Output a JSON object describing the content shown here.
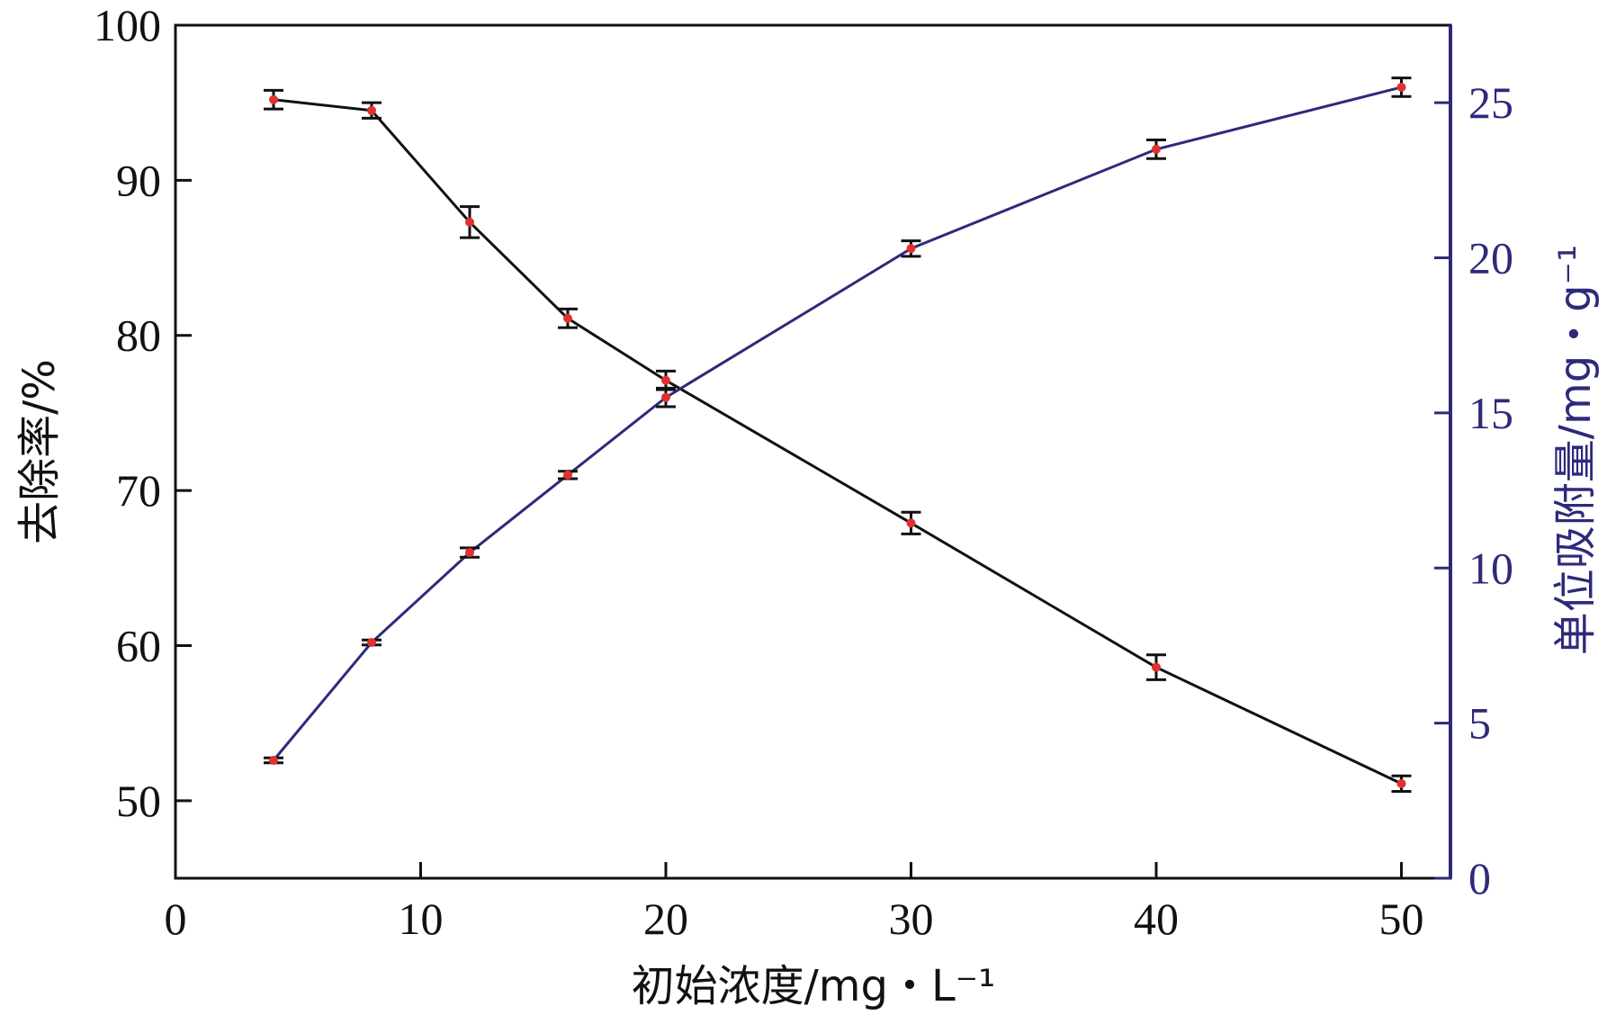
{
  "chart_data": {
    "type": "line",
    "xlabel": "初始浓度/mg・L⁻¹",
    "ylabel_left": "去除率/%",
    "ylabel_right": "单位吸附量/mg・g⁻¹",
    "xlim": [
      0,
      52
    ],
    "ylim_left": [
      45,
      100
    ],
    "ylim_right": [
      0,
      27.5
    ],
    "x_ticks": [
      0,
      10,
      20,
      30,
      40,
      50
    ],
    "y_left_ticks": [
      50,
      60,
      70,
      80,
      90,
      100
    ],
    "y_right_ticks": [
      0,
      5,
      10,
      15,
      20,
      25
    ],
    "grid": false,
    "colors": {
      "left_series": "#111111",
      "right_series": "#2e2a7a",
      "markers": "#e0312f",
      "right_axis": "#2e2a7a"
    },
    "series": [
      {
        "axis": "left",
        "x": [
          4,
          8,
          12,
          16,
          20,
          30,
          40,
          50
        ],
        "y": [
          95.2,
          94.5,
          87.3,
          81.1,
          77.1,
          67.9,
          58.6,
          51.1
        ],
        "err": [
          0.6,
          0.5,
          1.0,
          0.6,
          0.6,
          0.7,
          0.8,
          0.5
        ]
      },
      {
        "axis": "right",
        "x": [
          4,
          8,
          12,
          16,
          20,
          30,
          40,
          50
        ],
        "y": [
          3.8,
          7.6,
          10.5,
          13.0,
          15.5,
          20.3,
          23.5,
          25.5
        ],
        "err": [
          0.08,
          0.08,
          0.15,
          0.12,
          0.3,
          0.25,
          0.3,
          0.3
        ]
      }
    ]
  }
}
